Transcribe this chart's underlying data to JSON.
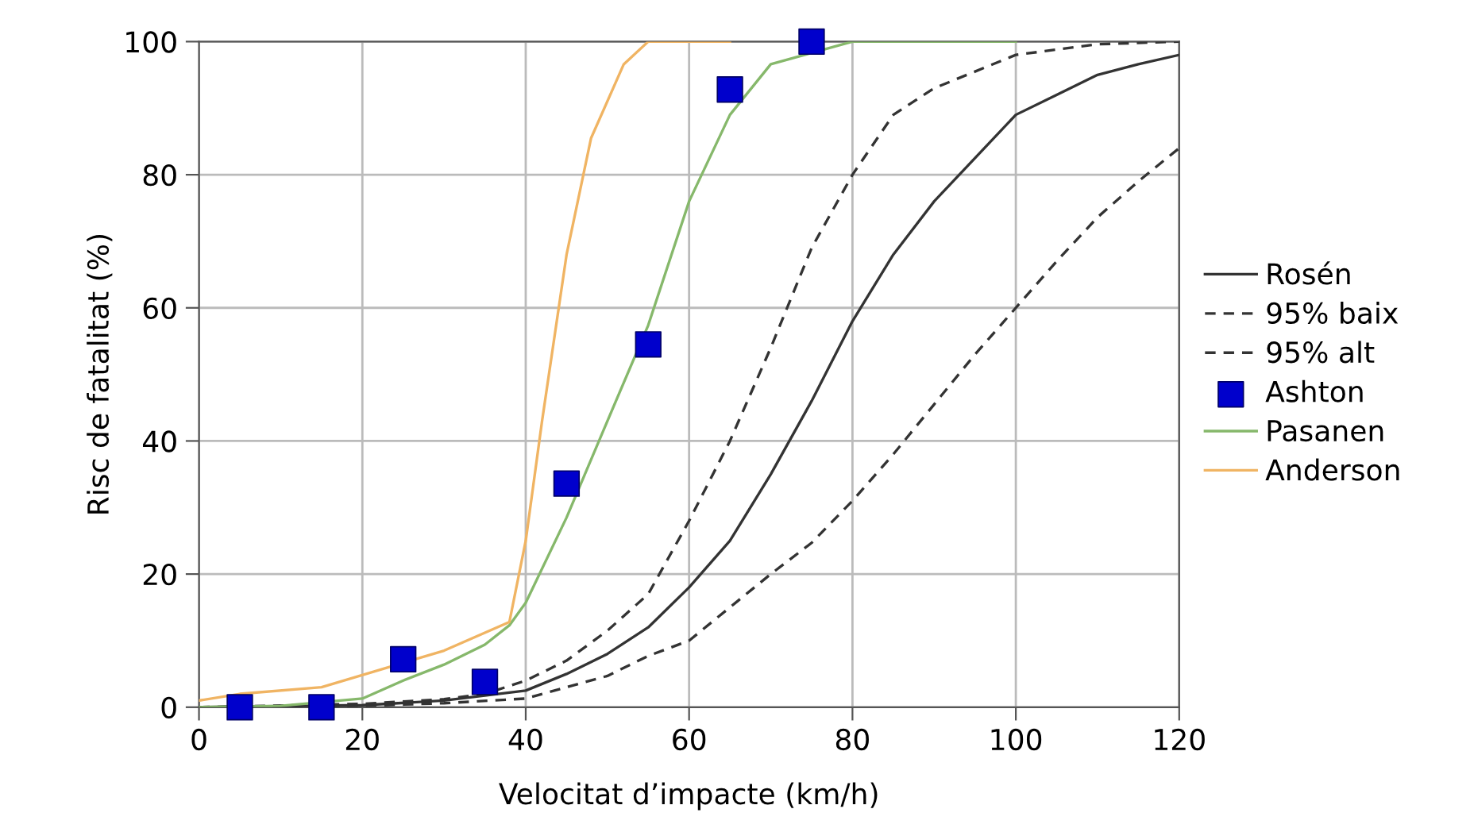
{
  "chart_data": {
    "type": "line",
    "xlabel": "Velocitat d’impacte (km/h)",
    "ylabel": "Risc de fatalitat (%)",
    "xlim": [
      0,
      120
    ],
    "ylim": [
      0,
      100
    ],
    "xticks": [
      0,
      20,
      40,
      60,
      80,
      100,
      120
    ],
    "yticks": [
      0,
      20,
      40,
      60,
      80,
      100
    ],
    "grid": true,
    "legend": "right",
    "series": [
      {
        "name": "Rosén",
        "color": "#333333",
        "line_style": "solid",
        "x": [
          0,
          20,
          30,
          40,
          45,
          50,
          55,
          60,
          65,
          70,
          75,
          80,
          85,
          90,
          95,
          100,
          105,
          110,
          115,
          120
        ],
        "values": [
          0,
          0.3,
          1,
          2.5,
          5,
          8,
          12,
          18,
          25,
          35,
          46,
          58,
          68,
          76,
          82.5,
          89,
          92,
          95,
          96.6,
          98
        ]
      },
      {
        "name": "95% baix",
        "color": "#333333",
        "line_style": "dashed",
        "x": [
          0,
          20,
          30,
          35,
          40,
          45,
          50,
          55,
          60,
          65,
          70,
          75,
          80,
          85,
          90,
          100,
          110,
          120
        ],
        "values": [
          0,
          0.5,
          1.2,
          2,
          4,
          7,
          11.5,
          17,
          28,
          40,
          54,
          69,
          80,
          89,
          93,
          98,
          99.6,
          100
        ]
      },
      {
        "name": "95% alt",
        "color": "#333333",
        "line_style": "dashed",
        "x": [
          0,
          20,
          30,
          40,
          50,
          55,
          60,
          65,
          70,
          75,
          80,
          85,
          90,
          95,
          100,
          105,
          110,
          115,
          120
        ],
        "values": [
          0,
          0.2,
          0.6,
          1.3,
          4.7,
          7.7,
          10,
          15,
          20,
          24.7,
          31,
          38,
          45.5,
          53,
          60,
          67,
          73.6,
          79,
          84
        ]
      },
      {
        "name": "Ashton",
        "type": "scatter",
        "marker": "square",
        "color": "#0000cc",
        "x": [
          5,
          15,
          25,
          35,
          45,
          55,
          65,
          75
        ],
        "values": [
          0,
          0,
          7.2,
          3.8,
          33.6,
          54.5,
          92.8,
          100
        ]
      },
      {
        "name": "Pasanen",
        "color": "#86b86b",
        "line_style": "solid",
        "x": [
          0,
          10,
          20,
          25,
          30,
          35,
          38,
          40,
          45,
          50,
          55,
          60,
          65,
          70,
          80,
          100
        ],
        "values": [
          0,
          0.2,
          1.3,
          4,
          6.4,
          9.4,
          12.3,
          15.7,
          28.5,
          43,
          57.4,
          76,
          89,
          96.6,
          100,
          100
        ]
      },
      {
        "name": "Anderson",
        "color": "#f0b463",
        "line_style": "solid",
        "x": [
          0,
          5,
          15,
          30,
          38,
          40,
          42,
          45,
          48,
          52,
          55,
          65
        ],
        "values": [
          1,
          2,
          3,
          8.5,
          12.8,
          25,
          43,
          68,
          85.5,
          96.6,
          100,
          100
        ]
      }
    ]
  }
}
